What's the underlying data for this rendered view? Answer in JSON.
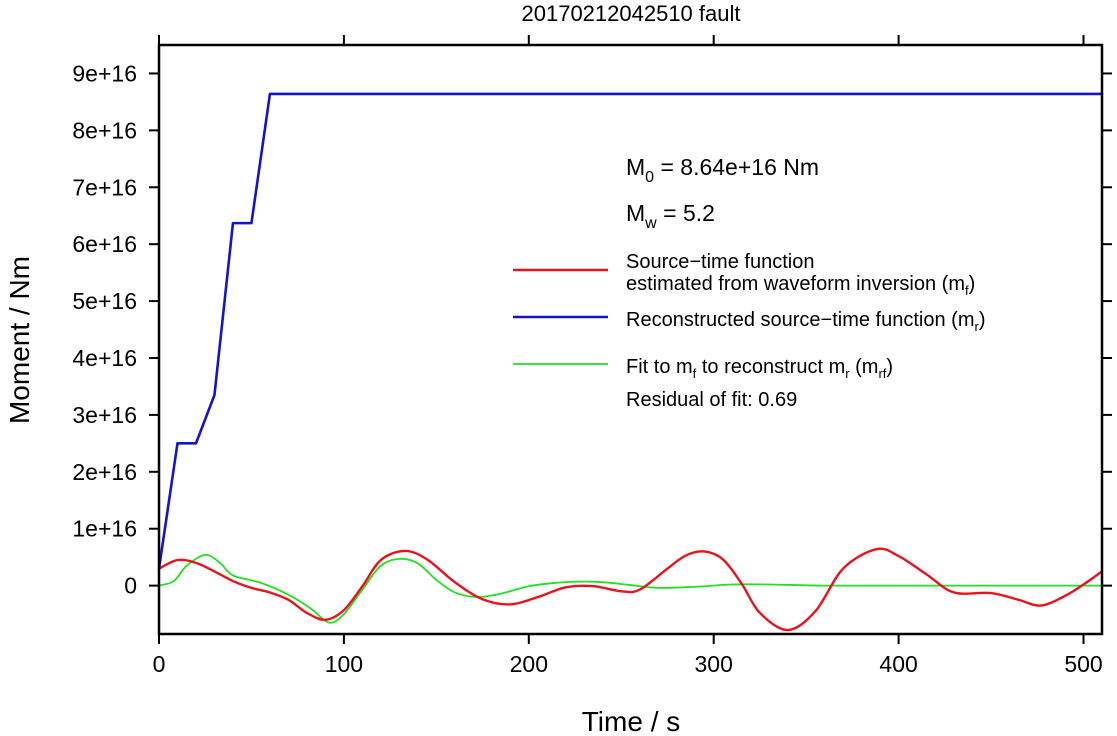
{
  "chart_data": {
    "type": "line",
    "title": "20170212042510 fault",
    "xlabel": "Time / s",
    "ylabel": "Moment / Nm",
    "xlim": [
      0,
      510
    ],
    "ylim": [
      -8500000000000000.0,
      9.5e+16
    ],
    "xticks": [
      0,
      100,
      200,
      300,
      400,
      500
    ],
    "xtick_labels": [
      "0",
      "100",
      "200",
      "300",
      "400",
      "500"
    ],
    "yticks": [
      0,
      1e+16,
      2e+16,
      3e+16,
      4e+16,
      5e+16,
      6e+16,
      7e+16,
      8e+16,
      9e+16
    ],
    "ytick_labels": [
      "0",
      "1e+16",
      "2e+16",
      "3e+16",
      "4e+16",
      "5e+16",
      "6e+16",
      "7e+16",
      "8e+16",
      "9e+16"
    ],
    "grid": false,
    "legend_position": "right",
    "annotations": {
      "m0": {
        "main": "M",
        "sub": "0",
        "rest": " = 8.64e+16 Nm"
      },
      "mw": {
        "main": "M",
        "sub": "w",
        "rest": " = 5.2"
      },
      "residual": "Residual of fit: 0.69"
    },
    "legend": [
      {
        "color": "#e8141c",
        "line1": "Source−time function",
        "line2": "estimated from waveform inversion (m",
        "line2_sub": "f",
        "line2_end": ")"
      },
      {
        "color": "#1414c8",
        "line1": "Reconstructed source−time function (m",
        "line1_sub": "r",
        "line1_end": ")"
      },
      {
        "color": "#22e022",
        "line1a": "Fit to m",
        "line1a_sub": "f",
        "line1b": " to reconstruct m",
        "line1b_sub": "r",
        "line1c": " (m",
        "line1c_sub": "rf",
        "line1_end": ")"
      }
    ],
    "series": [
      {
        "key": "mr",
        "color": "#1414c8",
        "width": 2.6,
        "x": [
          0,
          10,
          20,
          30,
          40,
          50,
          60,
          510
        ],
        "y": [
          3000000000000000.0,
          2.5e+16,
          2.5e+16,
          3.35e+16,
          6.37e+16,
          6.37e+16,
          8.64e+16,
          8.64e+16
        ]
      },
      {
        "key": "mf",
        "color": "#e8141c",
        "width": 2.4,
        "x": [
          0,
          10,
          20,
          30,
          40,
          50,
          60,
          70,
          80,
          90,
          100,
          110,
          120,
          133,
          145,
          160,
          175,
          190,
          205,
          220,
          235,
          250,
          260,
          275,
          285,
          295,
          305,
          315,
          325,
          340,
          355,
          370,
          388,
          400,
          415,
          430,
          450,
          465,
          477,
          490,
          500,
          510
        ],
        "y": [
          3000000000000000.0,
          4500000000000000.0,
          4000000000000000.0,
          2500000000000000.0,
          800000000000000.0,
          -400000000000000.0,
          -1200000000000000.0,
          -2500000000000000.0,
          -4800000000000000.0,
          -6000000000000000.0,
          -4300000000000000.0,
          -100000000000000.0,
          4500000000000000.0,
          6100000000000000.0,
          4600000000000000.0,
          600000000000000.0,
          -2400000000000000.0,
          -3300000000000000.0,
          -2000000000000000.0,
          -300000000000000.0,
          -100000000000000.0,
          -1000000000000000.0,
          -700000000000000.0,
          3000000000000000.0,
          5300000000000000.0,
          6000000000000000.0,
          4600000000000000.0,
          400000000000000.0,
          -4800000000000000.0,
          -7800000000000000.0,
          -4500000000000000.0,
          3000000000000000.0,
          6400000000000000.0,
          5200000000000000.0,
          2000000000000000.0,
          -1200000000000000.0,
          -1300000000000000.0,
          -2500000000000000.0,
          -3500000000000000.0,
          -1800000000000000.0,
          200000000000000.0,
          2500000000000000.0
        ]
      },
      {
        "key": "mrf",
        "color": "#22e022",
        "width": 1.8,
        "x": [
          0,
          8,
          15,
          25,
          33,
          40,
          55,
          70,
          82,
          92,
          100,
          110,
          120,
          130,
          140,
          150,
          160,
          172,
          185,
          200,
          215,
          228,
          240,
          255,
          270,
          290,
          310,
          330,
          360,
          400,
          450,
          510
        ],
        "y": [
          0,
          800000000000000.0,
          3500000000000000.0,
          5400000000000000.0,
          4000000000000000.0,
          1800000000000000.0,
          500000000000000.0,
          -1600000000000000.0,
          -4000000000000000.0,
          -6500000000000000.0,
          -5000000000000000.0,
          -700000000000000.0,
          3500000000000000.0,
          4700000000000000.0,
          3900000000000000.0,
          1000000000000000.0,
          -1200000000000000.0,
          -2000000000000000.0,
          -1400000000000000.0,
          -100000000000000.0,
          500000000000000.0,
          700000000000000.0,
          600000000000000.0,
          100000000000000.0,
          -400000000000000.0,
          -200000000000000.0,
          200000000000000.0,
          200000000000000.0,
          0,
          0,
          0,
          0
        ]
      }
    ]
  }
}
